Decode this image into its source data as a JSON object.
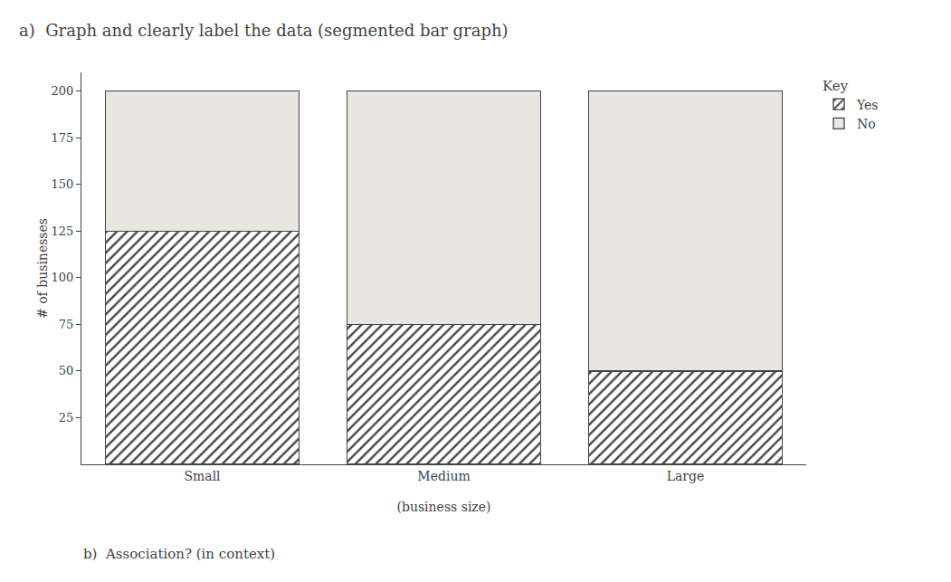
{
  "chart_data": {
    "type": "bar",
    "stacked": true,
    "title": "a)  Graph and clearly label the data (segmented bar graph)",
    "subtitle": "b)  Association? (in context)",
    "xlabel": "(business size)",
    "ylabel": "# of businesses",
    "categories": [
      "Small",
      "Medium",
      "Large"
    ],
    "series": [
      {
        "name": "Yes",
        "color": "#c8c8c8",
        "values": [
          125,
          75,
          50
        ]
      },
      {
        "name": "No",
        "color": "#e8e6e1",
        "values": [
          75,
          125,
          150
        ]
      }
    ],
    "legend_title": "Key",
    "legend": "upper right",
    "ylim": [
      0,
      210
    ],
    "yticks": [
      25,
      50,
      75,
      100,
      125,
      150,
      175,
      200
    ],
    "grid": false
  }
}
